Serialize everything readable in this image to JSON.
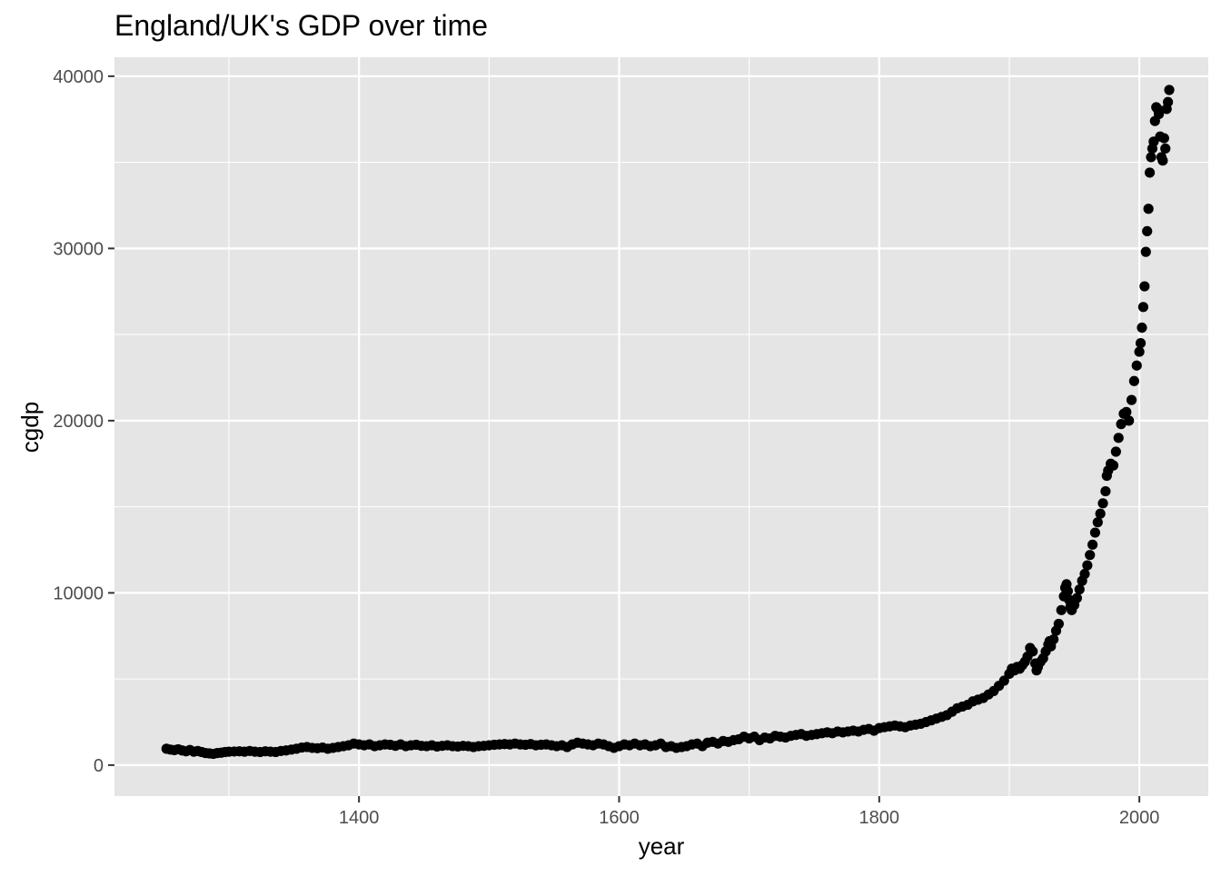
{
  "chart_data": {
    "type": "scatter",
    "title": "England/UK's GDP over time",
    "xlabel": "year",
    "ylabel": "cgdp",
    "xlim": [
      1212,
      2053
    ],
    "ylim": [
      -1800,
      41100
    ],
    "x_ticks": [
      "1400",
      "1600",
      "1800",
      "2000"
    ],
    "x_tick_values": [
      1400,
      1600,
      1800,
      2000
    ],
    "y_ticks": [
      "0",
      "10000",
      "20000",
      "30000",
      "40000"
    ],
    "y_tick_values": [
      0,
      10000,
      20000,
      30000,
      40000
    ],
    "grid": true,
    "background_color": "#e5e5e5",
    "point_color": "#000000",
    "series": [
      {
        "points": [
          [
            1252,
            950
          ],
          [
            1255,
            900
          ],
          [
            1258,
            870
          ],
          [
            1261,
            920
          ],
          [
            1264,
            850
          ],
          [
            1267,
            800
          ],
          [
            1270,
            880
          ],
          [
            1273,
            780
          ],
          [
            1276,
            820
          ],
          [
            1279,
            760
          ],
          [
            1282,
            700
          ],
          [
            1285,
            680
          ],
          [
            1288,
            650
          ],
          [
            1291,
            700
          ],
          [
            1294,
            720
          ],
          [
            1297,
            760
          ],
          [
            1300,
            780
          ],
          [
            1304,
            790
          ],
          [
            1308,
            800
          ],
          [
            1312,
            780
          ],
          [
            1316,
            820
          ],
          [
            1320,
            780
          ],
          [
            1324,
            760
          ],
          [
            1328,
            800
          ],
          [
            1332,
            780
          ],
          [
            1336,
            760
          ],
          [
            1340,
            820
          ],
          [
            1344,
            850
          ],
          [
            1348,
            900
          ],
          [
            1352,
            950
          ],
          [
            1356,
            1020
          ],
          [
            1360,
            1050
          ],
          [
            1364,
            1000
          ],
          [
            1368,
            980
          ],
          [
            1372,
            1020
          ],
          [
            1376,
            950
          ],
          [
            1380,
            1000
          ],
          [
            1384,
            1050
          ],
          [
            1388,
            1100
          ],
          [
            1392,
            1150
          ],
          [
            1396,
            1250
          ],
          [
            1400,
            1200
          ],
          [
            1404,
            1150
          ],
          [
            1408,
            1200
          ],
          [
            1412,
            1100
          ],
          [
            1416,
            1150
          ],
          [
            1420,
            1200
          ],
          [
            1424,
            1180
          ],
          [
            1428,
            1120
          ],
          [
            1432,
            1200
          ],
          [
            1436,
            1100
          ],
          [
            1440,
            1150
          ],
          [
            1444,
            1180
          ],
          [
            1448,
            1120
          ],
          [
            1452,
            1100
          ],
          [
            1456,
            1150
          ],
          [
            1460,
            1080
          ],
          [
            1464,
            1120
          ],
          [
            1468,
            1150
          ],
          [
            1472,
            1100
          ],
          [
            1476,
            1080
          ],
          [
            1480,
            1120
          ],
          [
            1484,
            1100
          ],
          [
            1488,
            1050
          ],
          [
            1492,
            1100
          ],
          [
            1496,
            1120
          ],
          [
            1500,
            1150
          ],
          [
            1504,
            1180
          ],
          [
            1508,
            1200
          ],
          [
            1512,
            1220
          ],
          [
            1516,
            1200
          ],
          [
            1520,
            1250
          ],
          [
            1524,
            1200
          ],
          [
            1528,
            1180
          ],
          [
            1532,
            1220
          ],
          [
            1536,
            1150
          ],
          [
            1540,
            1180
          ],
          [
            1544,
            1200
          ],
          [
            1548,
            1150
          ],
          [
            1552,
            1100
          ],
          [
            1556,
            1150
          ],
          [
            1560,
            1050
          ],
          [
            1564,
            1200
          ],
          [
            1568,
            1300
          ],
          [
            1572,
            1250
          ],
          [
            1576,
            1200
          ],
          [
            1580,
            1150
          ],
          [
            1584,
            1250
          ],
          [
            1588,
            1200
          ],
          [
            1592,
            1100
          ],
          [
            1596,
            1000
          ],
          [
            1600,
            1100
          ],
          [
            1604,
            1200
          ],
          [
            1608,
            1150
          ],
          [
            1612,
            1250
          ],
          [
            1616,
            1150
          ],
          [
            1620,
            1200
          ],
          [
            1624,
            1100
          ],
          [
            1628,
            1150
          ],
          [
            1632,
            1250
          ],
          [
            1636,
            1050
          ],
          [
            1640,
            1100
          ],
          [
            1644,
            1000
          ],
          [
            1648,
            1050
          ],
          [
            1652,
            1100
          ],
          [
            1656,
            1200
          ],
          [
            1660,
            1250
          ],
          [
            1664,
            1100
          ],
          [
            1668,
            1300
          ],
          [
            1672,
            1350
          ],
          [
            1676,
            1250
          ],
          [
            1680,
            1400
          ],
          [
            1684,
            1350
          ],
          [
            1688,
            1450
          ],
          [
            1692,
            1500
          ],
          [
            1696,
            1650
          ],
          [
            1700,
            1550
          ],
          [
            1704,
            1650
          ],
          [
            1708,
            1450
          ],
          [
            1712,
            1600
          ],
          [
            1716,
            1550
          ],
          [
            1720,
            1700
          ],
          [
            1724,
            1650
          ],
          [
            1728,
            1600
          ],
          [
            1732,
            1700
          ],
          [
            1736,
            1750
          ],
          [
            1740,
            1800
          ],
          [
            1744,
            1700
          ],
          [
            1748,
            1750
          ],
          [
            1752,
            1800
          ],
          [
            1756,
            1850
          ],
          [
            1760,
            1900
          ],
          [
            1764,
            1850
          ],
          [
            1768,
            1950
          ],
          [
            1772,
            1900
          ],
          [
            1776,
            1950
          ],
          [
            1780,
            2000
          ],
          [
            1784,
            1950
          ],
          [
            1788,
            2050
          ],
          [
            1792,
            2100
          ],
          [
            1796,
            2000
          ],
          [
            1800,
            2150
          ],
          [
            1804,
            2200
          ],
          [
            1808,
            2250
          ],
          [
            1812,
            2300
          ],
          [
            1816,
            2250
          ],
          [
            1820,
            2200
          ],
          [
            1824,
            2300
          ],
          [
            1828,
            2350
          ],
          [
            1832,
            2400
          ],
          [
            1836,
            2500
          ],
          [
            1840,
            2600
          ],
          [
            1844,
            2700
          ],
          [
            1848,
            2800
          ],
          [
            1852,
            2900
          ],
          [
            1856,
            3100
          ],
          [
            1860,
            3300
          ],
          [
            1864,
            3400
          ],
          [
            1868,
            3500
          ],
          [
            1872,
            3700
          ],
          [
            1876,
            3800
          ],
          [
            1880,
            3900
          ],
          [
            1884,
            4100
          ],
          [
            1888,
            4300
          ],
          [
            1892,
            4600
          ],
          [
            1896,
            4900
          ],
          [
            1900,
            5300
          ],
          [
            1902,
            5600
          ],
          [
            1904,
            5500
          ],
          [
            1906,
            5700
          ],
          [
            1908,
            5600
          ],
          [
            1910,
            5800
          ],
          [
            1912,
            6000
          ],
          [
            1914,
            6300
          ],
          [
            1916,
            6800
          ],
          [
            1918,
            6600
          ],
          [
            1920,
            5900
          ],
          [
            1921,
            5500
          ],
          [
            1922,
            5700
          ],
          [
            1924,
            6000
          ],
          [
            1926,
            6200
          ],
          [
            1928,
            6600
          ],
          [
            1930,
            7000
          ],
          [
            1931,
            7200
          ],
          [
            1932,
            6900
          ],
          [
            1934,
            7300
          ],
          [
            1936,
            7800
          ],
          [
            1938,
            8200
          ],
          [
            1940,
            9000
          ],
          [
            1942,
            9800
          ],
          [
            1943,
            10300
          ],
          [
            1944,
            10500
          ],
          [
            1945,
            10100
          ],
          [
            1946,
            9600
          ],
          [
            1947,
            9200
          ],
          [
            1948,
            9000
          ],
          [
            1950,
            9300
          ],
          [
            1952,
            9700
          ],
          [
            1954,
            10200
          ],
          [
            1956,
            10700
          ],
          [
            1958,
            11100
          ],
          [
            1960,
            11600
          ],
          [
            1962,
            12200
          ],
          [
            1964,
            12800
          ],
          [
            1966,
            13500
          ],
          [
            1968,
            14100
          ],
          [
            1970,
            14600
          ],
          [
            1972,
            15200
          ],
          [
            1974,
            15900
          ],
          [
            1975,
            16800
          ],
          [
            1976,
            17100
          ],
          [
            1978,
            17500
          ],
          [
            1980,
            17400
          ],
          [
            1982,
            18200
          ],
          [
            1984,
            19000
          ],
          [
            1986,
            19800
          ],
          [
            1988,
            20400
          ],
          [
            1990,
            20500
          ],
          [
            1992,
            20000
          ],
          [
            1994,
            21200
          ],
          [
            1996,
            22300
          ],
          [
            1998,
            23200
          ],
          [
            2000,
            24000
          ],
          [
            2001,
            24500
          ],
          [
            2002,
            25400
          ],
          [
            2003,
            26600
          ],
          [
            2004,
            27800
          ],
          [
            2005,
            29800
          ],
          [
            2006,
            31000
          ],
          [
            2007,
            32300
          ],
          [
            2008,
            34400
          ],
          [
            2009,
            35300
          ],
          [
            2010,
            35800
          ],
          [
            2011,
            36200
          ],
          [
            2012,
            37400
          ],
          [
            2013,
            38200
          ],
          [
            2014,
            38100
          ],
          [
            2015,
            37800
          ],
          [
            2016,
            36500
          ],
          [
            2017,
            35300
          ],
          [
            2018,
            35100
          ],
          [
            2019,
            36400
          ],
          [
            2020,
            35800
          ],
          [
            2021,
            38100
          ],
          [
            2022,
            38500
          ],
          [
            2023,
            39200
          ]
        ]
      }
    ]
  }
}
